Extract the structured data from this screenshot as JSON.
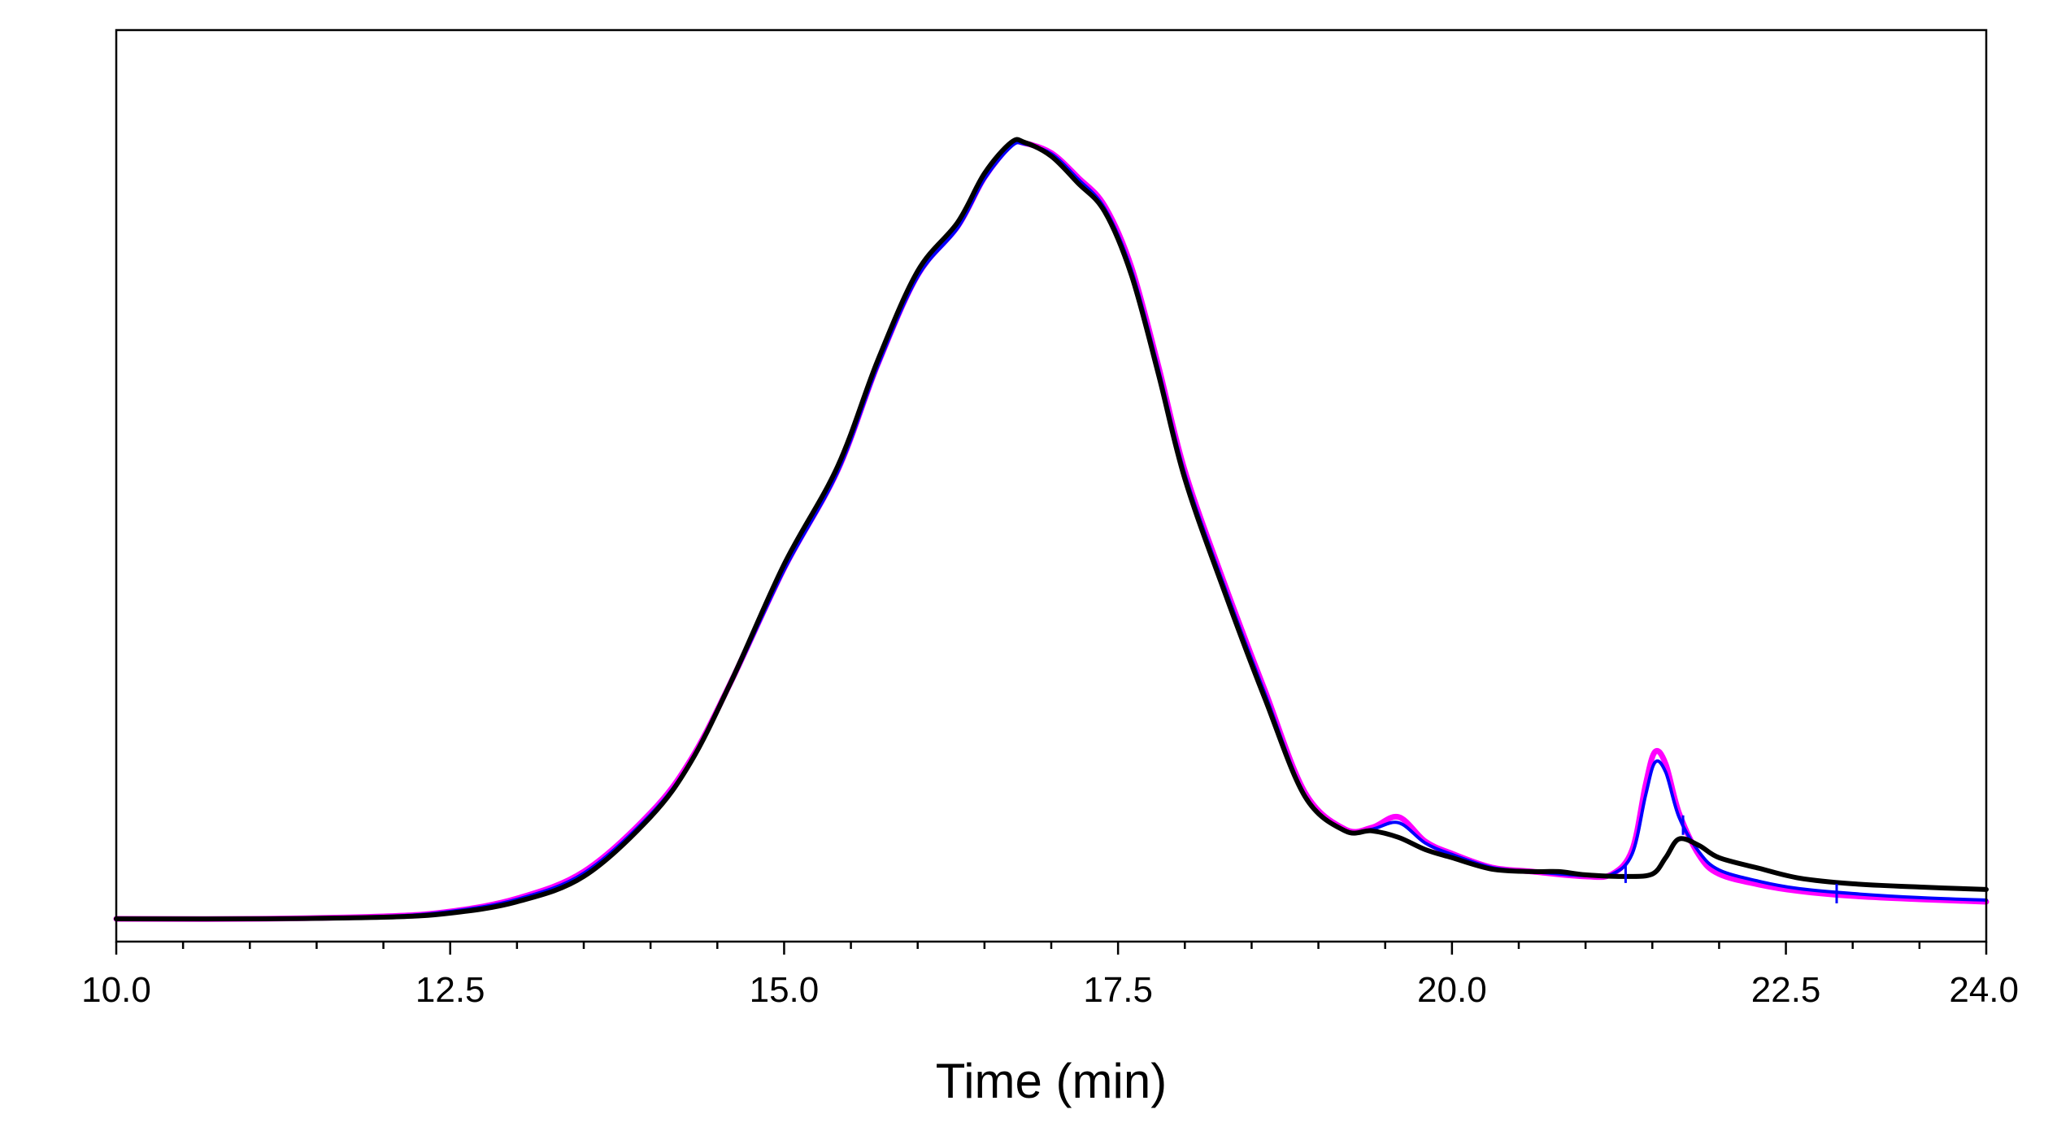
{
  "chart_data": {
    "type": "line",
    "title": "",
    "xlabel": "Time (min)",
    "ylabel": "",
    "xlim": [
      10.0,
      24.0
    ],
    "ylim": [
      0,
      1.0
    ],
    "x_ticks": [
      "10.0",
      "12.5",
      "15.0",
      "17.5",
      "20.0",
      "22.5",
      "24.0"
    ],
    "x_tick_values": [
      10.0,
      12.5,
      15.0,
      17.5,
      20.0,
      22.5,
      24.0
    ],
    "x_minor_step": 0.5,
    "grid": false,
    "legend": "none",
    "series": [
      {
        "color": "#ff00ff",
        "x": [
          10.0,
          11.0,
          12.0,
          12.5,
          13.0,
          13.5,
          14.0,
          14.3,
          14.6,
          15.0,
          15.4,
          15.7,
          16.0,
          16.3,
          16.5,
          16.7,
          16.8,
          17.0,
          17.2,
          17.4,
          17.6,
          17.8,
          18.0,
          18.3,
          18.6,
          18.9,
          19.2,
          19.4,
          19.6,
          19.8,
          20.0,
          20.3,
          20.6,
          21.0,
          21.2,
          21.35,
          21.45,
          21.52,
          21.6,
          21.7,
          21.85,
          22.0,
          22.3,
          22.6,
          23.0,
          23.5,
          24.0
        ],
        "y": [
          0.0,
          0.0,
          0.003,
          0.009,
          0.025,
          0.058,
          0.13,
          0.195,
          0.29,
          0.43,
          0.55,
          0.68,
          0.79,
          0.85,
          0.91,
          0.95,
          0.952,
          0.94,
          0.91,
          0.875,
          0.8,
          0.68,
          0.55,
          0.41,
          0.28,
          0.155,
          0.11,
          0.112,
          0.125,
          0.095,
          0.08,
          0.063,
          0.058,
          0.052,
          0.055,
          0.085,
          0.165,
          0.205,
          0.19,
          0.13,
          0.078,
          0.055,
          0.042,
          0.034,
          0.028,
          0.024,
          0.021
        ]
      },
      {
        "color": "#0000ff",
        "x": [
          10.0,
          11.0,
          12.0,
          12.5,
          13.0,
          13.5,
          14.0,
          14.3,
          14.6,
          15.0,
          15.4,
          15.7,
          16.0,
          16.3,
          16.5,
          16.7,
          16.8,
          17.0,
          17.2,
          17.4,
          17.6,
          17.8,
          18.0,
          18.3,
          18.6,
          18.9,
          19.2,
          19.4,
          19.6,
          19.8,
          20.0,
          20.3,
          20.6,
          21.0,
          21.2,
          21.35,
          21.45,
          21.52,
          21.6,
          21.7,
          21.85,
          22.0,
          22.3,
          22.6,
          23.0,
          23.5,
          24.0
        ],
        "y": [
          0.0,
          0.0,
          0.003,
          0.009,
          0.024,
          0.056,
          0.128,
          0.193,
          0.288,
          0.428,
          0.548,
          0.678,
          0.788,
          0.848,
          0.908,
          0.948,
          0.951,
          0.939,
          0.908,
          0.872,
          0.796,
          0.676,
          0.546,
          0.406,
          0.276,
          0.152,
          0.108,
          0.11,
          0.118,
          0.093,
          0.079,
          0.063,
          0.058,
          0.053,
          0.055,
          0.08,
          0.152,
          0.192,
          0.18,
          0.125,
          0.082,
          0.06,
          0.046,
          0.037,
          0.031,
          0.026,
          0.023
        ]
      },
      {
        "color": "#000000",
        "x": [
          10.0,
          11.0,
          12.0,
          12.5,
          13.0,
          13.5,
          14.0,
          14.3,
          14.6,
          15.0,
          15.4,
          15.7,
          16.0,
          16.3,
          16.5,
          16.7,
          16.8,
          17.0,
          17.2,
          17.4,
          17.6,
          17.8,
          18.0,
          18.3,
          18.6,
          18.9,
          19.2,
          19.4,
          19.6,
          19.8,
          20.0,
          20.3,
          20.6,
          20.8,
          21.0,
          21.3,
          21.5,
          21.6,
          21.7,
          21.85,
          22.0,
          22.3,
          22.6,
          23.0,
          23.5,
          24.0
        ],
        "y": [
          0.0,
          0.0,
          0.002,
          0.007,
          0.021,
          0.052,
          0.125,
          0.192,
          0.29,
          0.435,
          0.555,
          0.685,
          0.795,
          0.855,
          0.915,
          0.953,
          0.953,
          0.936,
          0.903,
          0.868,
          0.79,
          0.67,
          0.54,
          0.4,
          0.27,
          0.15,
          0.108,
          0.108,
          0.1,
          0.085,
          0.075,
          0.061,
          0.058,
          0.058,
          0.054,
          0.052,
          0.055,
          0.075,
          0.098,
          0.09,
          0.075,
          0.062,
          0.05,
          0.043,
          0.039,
          0.036
        ]
      }
    ],
    "markers": {
      "color": "#0000ff",
      "points": [
        {
          "x": 21.3,
          "y": 0.056
        },
        {
          "x": 21.73,
          "y": 0.115
        },
        {
          "x": 22.88,
          "y": 0.031
        }
      ]
    }
  }
}
